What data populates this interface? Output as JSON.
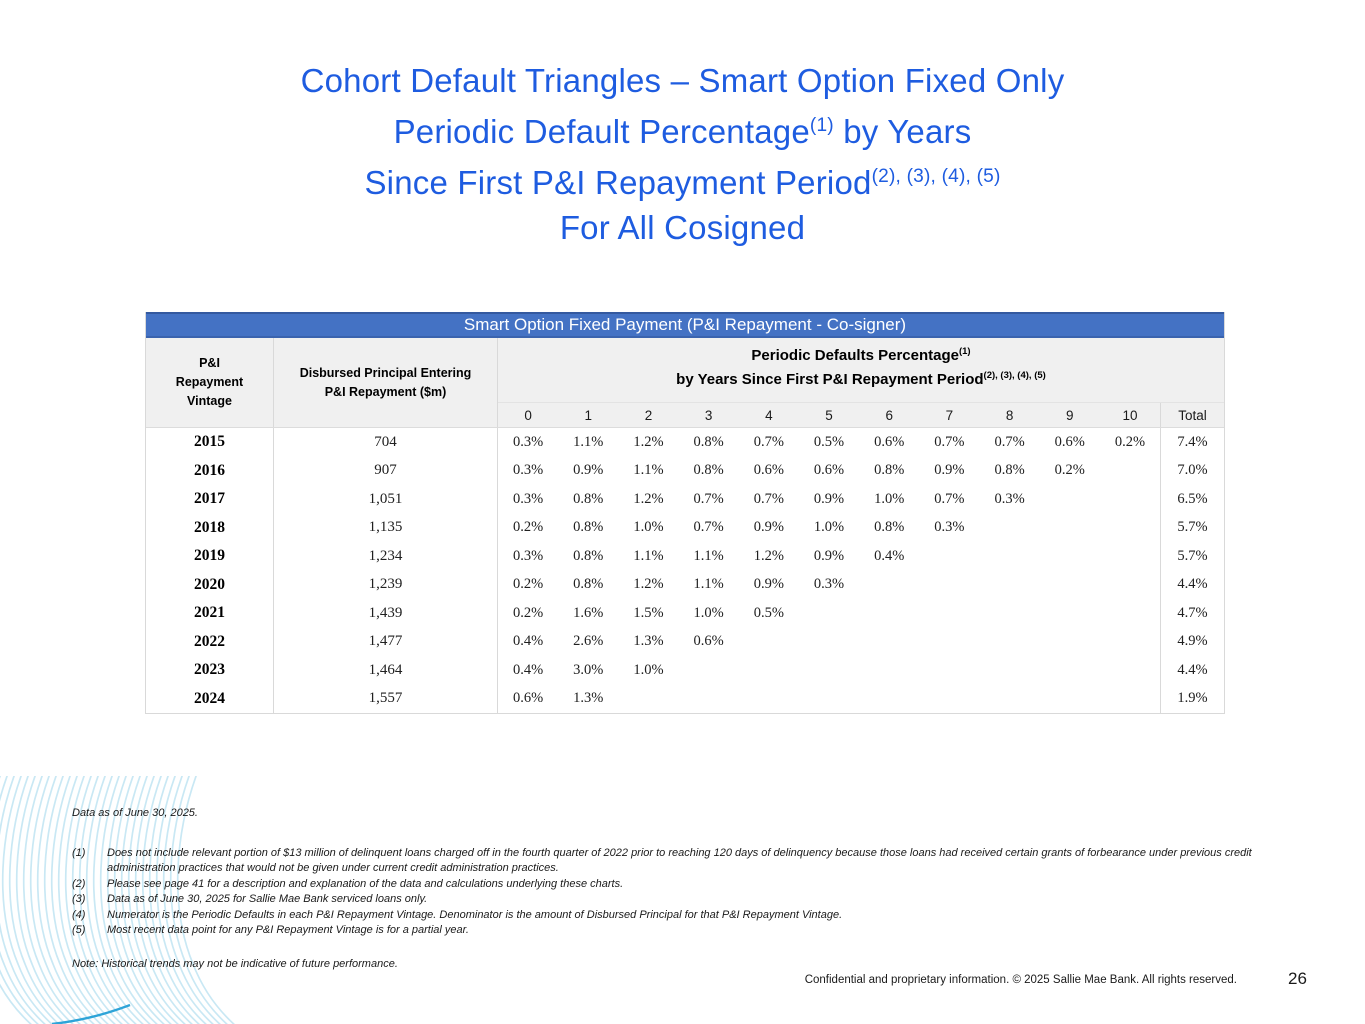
{
  "title": {
    "line1": "Cohort Default Triangles – Smart Option Fixed Only",
    "line2_main": "Periodic Default Percentage",
    "line2_sup": "(1)",
    "line2_tail": " by Years",
    "line3_main": "Since First P&I Repayment Period",
    "line3_sup": "(2), (3), (4), (5)",
    "line4": "For All Cosigned"
  },
  "table": {
    "banner": "Smart Option Fixed Payment (P&I Repayment - Co-signer)",
    "vintage_header": "P&I Repayment Vintage",
    "disbursed_header": "Disbursed Principal Entering P&I Repayment ($m)",
    "group_header1": "Periodic Defaults Percentage",
    "group_header1_sup": "(1)",
    "group_header2": "by Years Since First P&I Repayment Period",
    "group_header2_sup": "(2), (3), (4), (5)",
    "year_columns": [
      "0",
      "1",
      "2",
      "3",
      "4",
      "5",
      "6",
      "7",
      "8",
      "9",
      "10"
    ],
    "total_column": "Total",
    "rows": [
      {
        "vintage": "2015",
        "disbursed": "704",
        "values": [
          "0.3%",
          "1.1%",
          "1.2%",
          "0.8%",
          "0.7%",
          "0.5%",
          "0.6%",
          "0.7%",
          "0.7%",
          "0.6%",
          "0.2%"
        ],
        "total": "7.4%"
      },
      {
        "vintage": "2016",
        "disbursed": "907",
        "values": [
          "0.3%",
          "0.9%",
          "1.1%",
          "0.8%",
          "0.6%",
          "0.6%",
          "0.8%",
          "0.9%",
          "0.8%",
          "0.2%"
        ],
        "total": "7.0%"
      },
      {
        "vintage": "2017",
        "disbursed": "1,051",
        "values": [
          "0.3%",
          "0.8%",
          "1.2%",
          "0.7%",
          "0.7%",
          "0.9%",
          "1.0%",
          "0.7%",
          "0.3%"
        ],
        "total": "6.5%"
      },
      {
        "vintage": "2018",
        "disbursed": "1,135",
        "values": [
          "0.2%",
          "0.8%",
          "1.0%",
          "0.7%",
          "0.9%",
          "1.0%",
          "0.8%",
          "0.3%"
        ],
        "total": "5.7%"
      },
      {
        "vintage": "2019",
        "disbursed": "1,234",
        "values": [
          "0.3%",
          "0.8%",
          "1.1%",
          "1.1%",
          "1.2%",
          "0.9%",
          "0.4%"
        ],
        "total": "5.7%"
      },
      {
        "vintage": "2020",
        "disbursed": "1,239",
        "values": [
          "0.2%",
          "0.8%",
          "1.2%",
          "1.1%",
          "0.9%",
          "0.3%"
        ],
        "total": "4.4%"
      },
      {
        "vintage": "2021",
        "disbursed": "1,439",
        "values": [
          "0.2%",
          "1.6%",
          "1.5%",
          "1.0%",
          "0.5%"
        ],
        "total": "4.7%"
      },
      {
        "vintage": "2022",
        "disbursed": "1,477",
        "values": [
          "0.4%",
          "2.6%",
          "1.3%",
          "0.6%"
        ],
        "total": "4.9%"
      },
      {
        "vintage": "2023",
        "disbursed": "1,464",
        "values": [
          "0.4%",
          "3.0%",
          "1.0%"
        ],
        "total": "4.4%"
      },
      {
        "vintage": "2024",
        "disbursed": "1,557",
        "values": [
          "0.6%",
          "1.3%"
        ],
        "total": "1.9%"
      }
    ]
  },
  "footnotes": {
    "data_as_of": "Data as of June 30, 2025.",
    "items": [
      {
        "num": "(1)",
        "text": "Does not include relevant portion of $13 million of delinquent loans charged off in the fourth quarter of 2022 prior to reaching 120 days of delinquency because those loans had received certain grants of forbearance under previous credit administration practices that would not be given under current credit administration practices."
      },
      {
        "num": "(2)",
        "text": "Please see page 41 for a description and explanation of the data and calculations underlying these charts."
      },
      {
        "num": "(3)",
        "text": "Data as of June 30, 2025 for Sallie Mae Bank serviced loans only."
      },
      {
        "num": "(4)",
        "text": "Numerator is the Periodic Defaults in each P&I Repayment Vintage. Denominator is the amount of Disbursed Principal for that P&I Repayment Vintage."
      },
      {
        "num": "(5)",
        "text": "Most recent data point for any P&I Repayment Vintage is for a partial year."
      }
    ],
    "note": "Note: Historical trends may not be indicative of future performance."
  },
  "footer": {
    "confidential": "Confidential and proprietary information. © 2025 Sallie Mae Bank. All rights reserved.",
    "page_number": "26"
  },
  "colors": {
    "title_blue": "#1e5ce0",
    "banner_blue": "#4472c4",
    "header_gray": "#f0f0f0",
    "wave_light_blue": "#c9e8f4",
    "wave_accent_blue": "#2ea4d8"
  }
}
